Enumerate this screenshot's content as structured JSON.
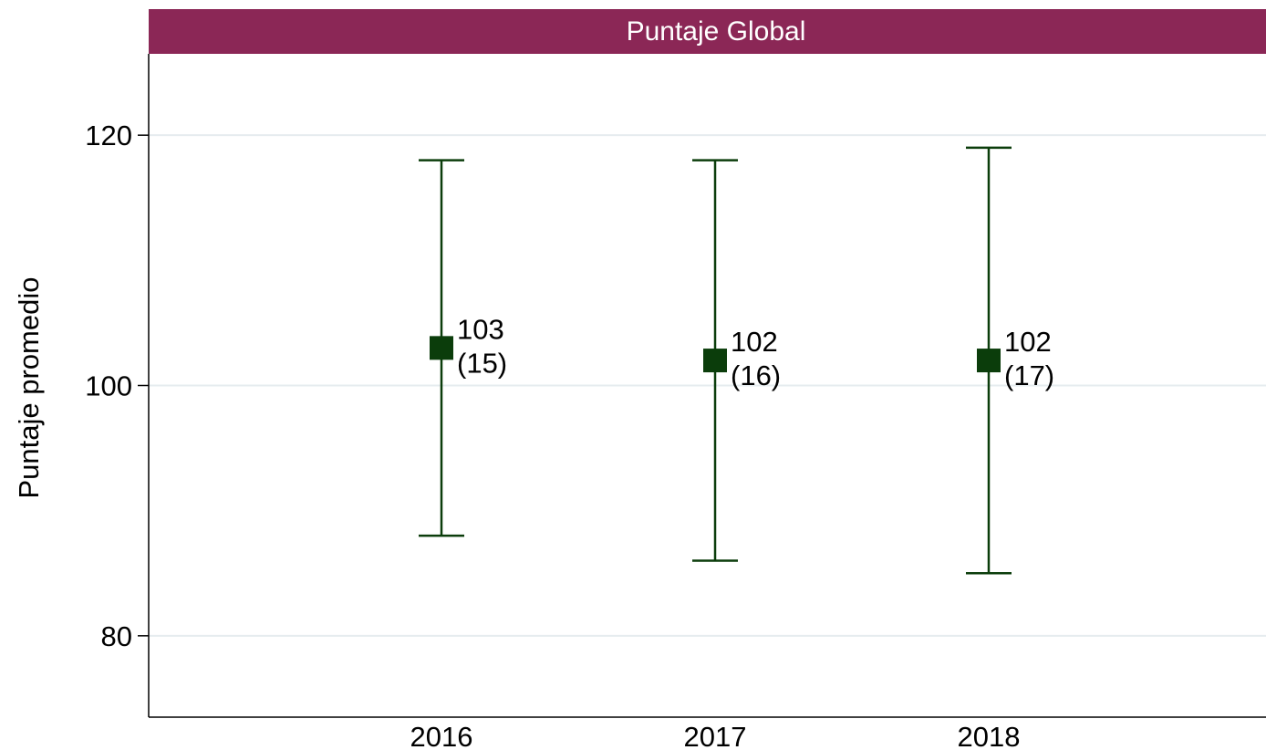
{
  "colors": {
    "header_bg": "#8b2756",
    "header_text": "#ffffff",
    "marker": "#0b3d0b",
    "grid": "#e6ecef",
    "axis": "#000000"
  },
  "chart_data": {
    "type": "scatter",
    "title": "Puntaje Global",
    "ylabel": "Puntaje promedio",
    "xlabel": "",
    "categories": [
      "2016",
      "2017",
      "2018"
    ],
    "series": [
      {
        "values": [
          103,
          102,
          102
        ],
        "sd_labels": [
          "(15)",
          "(16)",
          "(17)"
        ],
        "value_labels": [
          "103",
          "102",
          "102"
        ],
        "error_low": [
          88,
          86,
          85
        ],
        "error_high": [
          118,
          118,
          119
        ]
      }
    ],
    "ylim": [
      73.5,
      126.5
    ],
    "yticks": [
      80,
      100,
      120
    ],
    "ytick_labels": [
      "80",
      "100",
      "120"
    ],
    "grid": true
  }
}
